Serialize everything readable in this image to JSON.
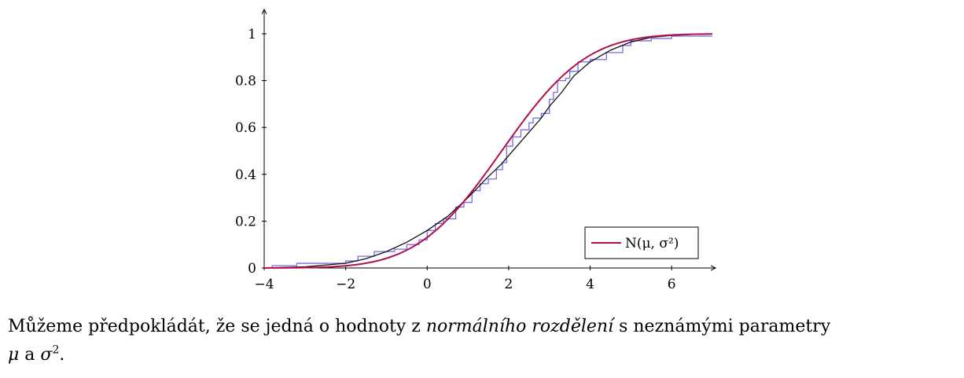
{
  "chart_data": {
    "type": "line",
    "xlim": [
      -4,
      7
    ],
    "ylim": [
      0,
      1.1
    ],
    "xticks": [
      -4,
      -2,
      0,
      2,
      4,
      6
    ],
    "xtick_labels": [
      "−4",
      "−2",
      "0",
      "2",
      "4",
      "6"
    ],
    "yticks": [
      0,
      0.2,
      0.4,
      0.6,
      0.8,
      1
    ],
    "ytick_labels": [
      "0",
      "0.2",
      "0.4",
      "0.6",
      "0.8",
      "1"
    ],
    "legend_position": "bottom-right",
    "grid": false,
    "series": [
      {
        "kind": "empirical-step",
        "color": "#6f6fe0",
        "x": [
          -3.8,
          -3.2,
          -2.0,
          -1.7,
          -1.3,
          -0.8,
          -0.5,
          -0.2,
          0.0,
          0.2,
          0.4,
          0.7,
          0.9,
          1.1,
          1.3,
          1.5,
          1.7,
          1.85,
          1.95,
          2.1,
          2.3,
          2.5,
          2.6,
          2.8,
          3.0,
          3.1,
          3.2,
          3.4,
          3.5,
          3.7,
          4.0,
          4.4,
          4.8,
          5.0,
          5.5,
          6.0
        ],
        "y": [
          0.01,
          0.02,
          0.03,
          0.05,
          0.07,
          0.08,
          0.1,
          0.12,
          0.16,
          0.19,
          0.21,
          0.26,
          0.28,
          0.33,
          0.36,
          0.38,
          0.42,
          0.45,
          0.52,
          0.56,
          0.59,
          0.62,
          0.64,
          0.66,
          0.72,
          0.75,
          0.8,
          0.81,
          0.84,
          0.88,
          0.89,
          0.92,
          0.95,
          0.97,
          0.98,
          0.99
        ]
      },
      {
        "kind": "smoothed",
        "color": "#111111",
        "x": [
          -4,
          -3,
          -2,
          -1.5,
          -1,
          -0.5,
          0,
          0.5,
          1,
          1.5,
          1.8,
          2.0,
          2.2,
          2.5,
          2.8,
          3.0,
          3.3,
          3.6,
          4.0,
          4.5,
          5.0,
          5.5,
          6.0,
          6.5,
          7.0
        ],
        "y": [
          0.0,
          0.005,
          0.02,
          0.04,
          0.07,
          0.11,
          0.16,
          0.22,
          0.3,
          0.39,
          0.44,
          0.48,
          0.52,
          0.58,
          0.64,
          0.69,
          0.75,
          0.82,
          0.88,
          0.93,
          0.965,
          0.985,
          0.993,
          0.997,
          0.999
        ]
      },
      {
        "name": "N(μ, σ²)",
        "kind": "normal-cdf",
        "color": "#b01048",
        "mu": 1.83,
        "sigma": 1.63
      }
    ]
  },
  "paragraph": {
    "line1_start": "Můžeme předpokládát, že se jedná o hodnoty z ",
    "line1_emph": "normálního rozdělení",
    "line1_end": " s neznámými parametry",
    "line2_mu": "μ",
    "line2_a": " a ",
    "line2_sigma": "σ",
    "line2_sup": "2",
    "line2_end": "."
  }
}
